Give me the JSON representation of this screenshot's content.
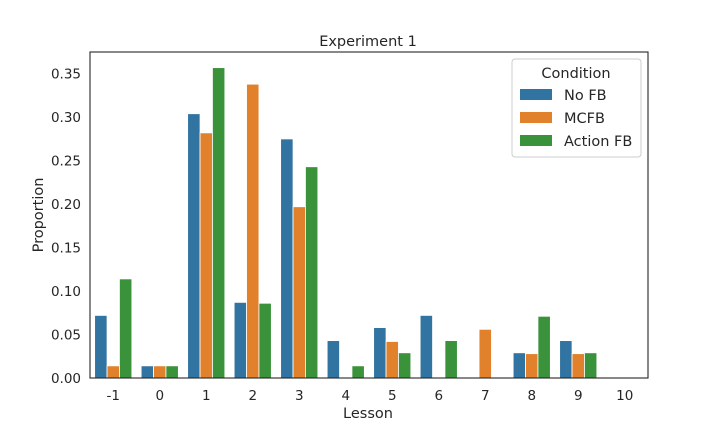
{
  "chart_data": {
    "type": "bar",
    "title": "Experiment 1",
    "xlabel": "Lesson",
    "ylabel": "Proportion",
    "categories": [
      "-1",
      "0",
      "1",
      "2",
      "3",
      "4",
      "5",
      "6",
      "7",
      "8",
      "9",
      "10"
    ],
    "series": [
      {
        "name": "No FB",
        "color": "#3274a1",
        "values": [
          0.072,
          0.014,
          0.304,
          0.087,
          0.275,
          0.043,
          0.058,
          0.072,
          0.0,
          0.029,
          0.043,
          0.0
        ]
      },
      {
        "name": "MCFB",
        "color": "#e1812c",
        "values": [
          0.014,
          0.014,
          0.282,
          0.338,
          0.197,
          0.0,
          0.042,
          0.0,
          0.056,
          0.028,
          0.028,
          0.0
        ]
      },
      {
        "name": "Action FB",
        "color": "#3a923a",
        "values": [
          0.114,
          0.014,
          0.357,
          0.086,
          0.243,
          0.014,
          0.029,
          0.043,
          0.0,
          0.071,
          0.029,
          0.0
        ]
      }
    ],
    "yticks": [
      "0.00",
      "0.05",
      "0.10",
      "0.15",
      "0.20",
      "0.25",
      "0.30",
      "0.35"
    ],
    "ylim": [
      0,
      0.375
    ],
    "legend": {
      "title": "Condition",
      "position": "top-right"
    },
    "grid": false
  }
}
